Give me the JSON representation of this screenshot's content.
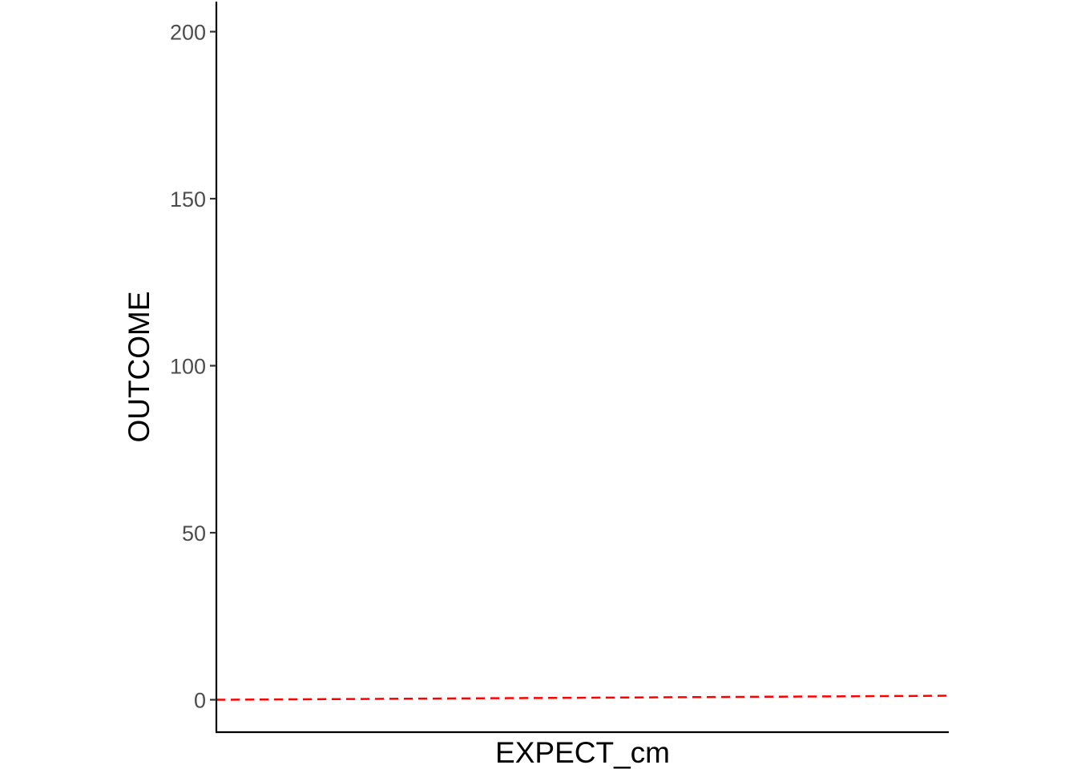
{
  "chart_data": {
    "type": "line",
    "title": "",
    "xlabel": "EXPECT_cm",
    "ylabel": "OUTCOME",
    "ylim": [
      -9.7,
      209
    ],
    "y_ticks": [
      0,
      50,
      100,
      150,
      200
    ],
    "y_tick_labels": [
      "0",
      "50",
      "100",
      "150",
      "200"
    ],
    "x_ticks": [],
    "grid": false,
    "legend": "none",
    "series": [
      {
        "style": "dashed",
        "color": "#ff0000",
        "x": [
          0,
          1
        ],
        "y": [
          0,
          1.2
        ]
      }
    ]
  }
}
